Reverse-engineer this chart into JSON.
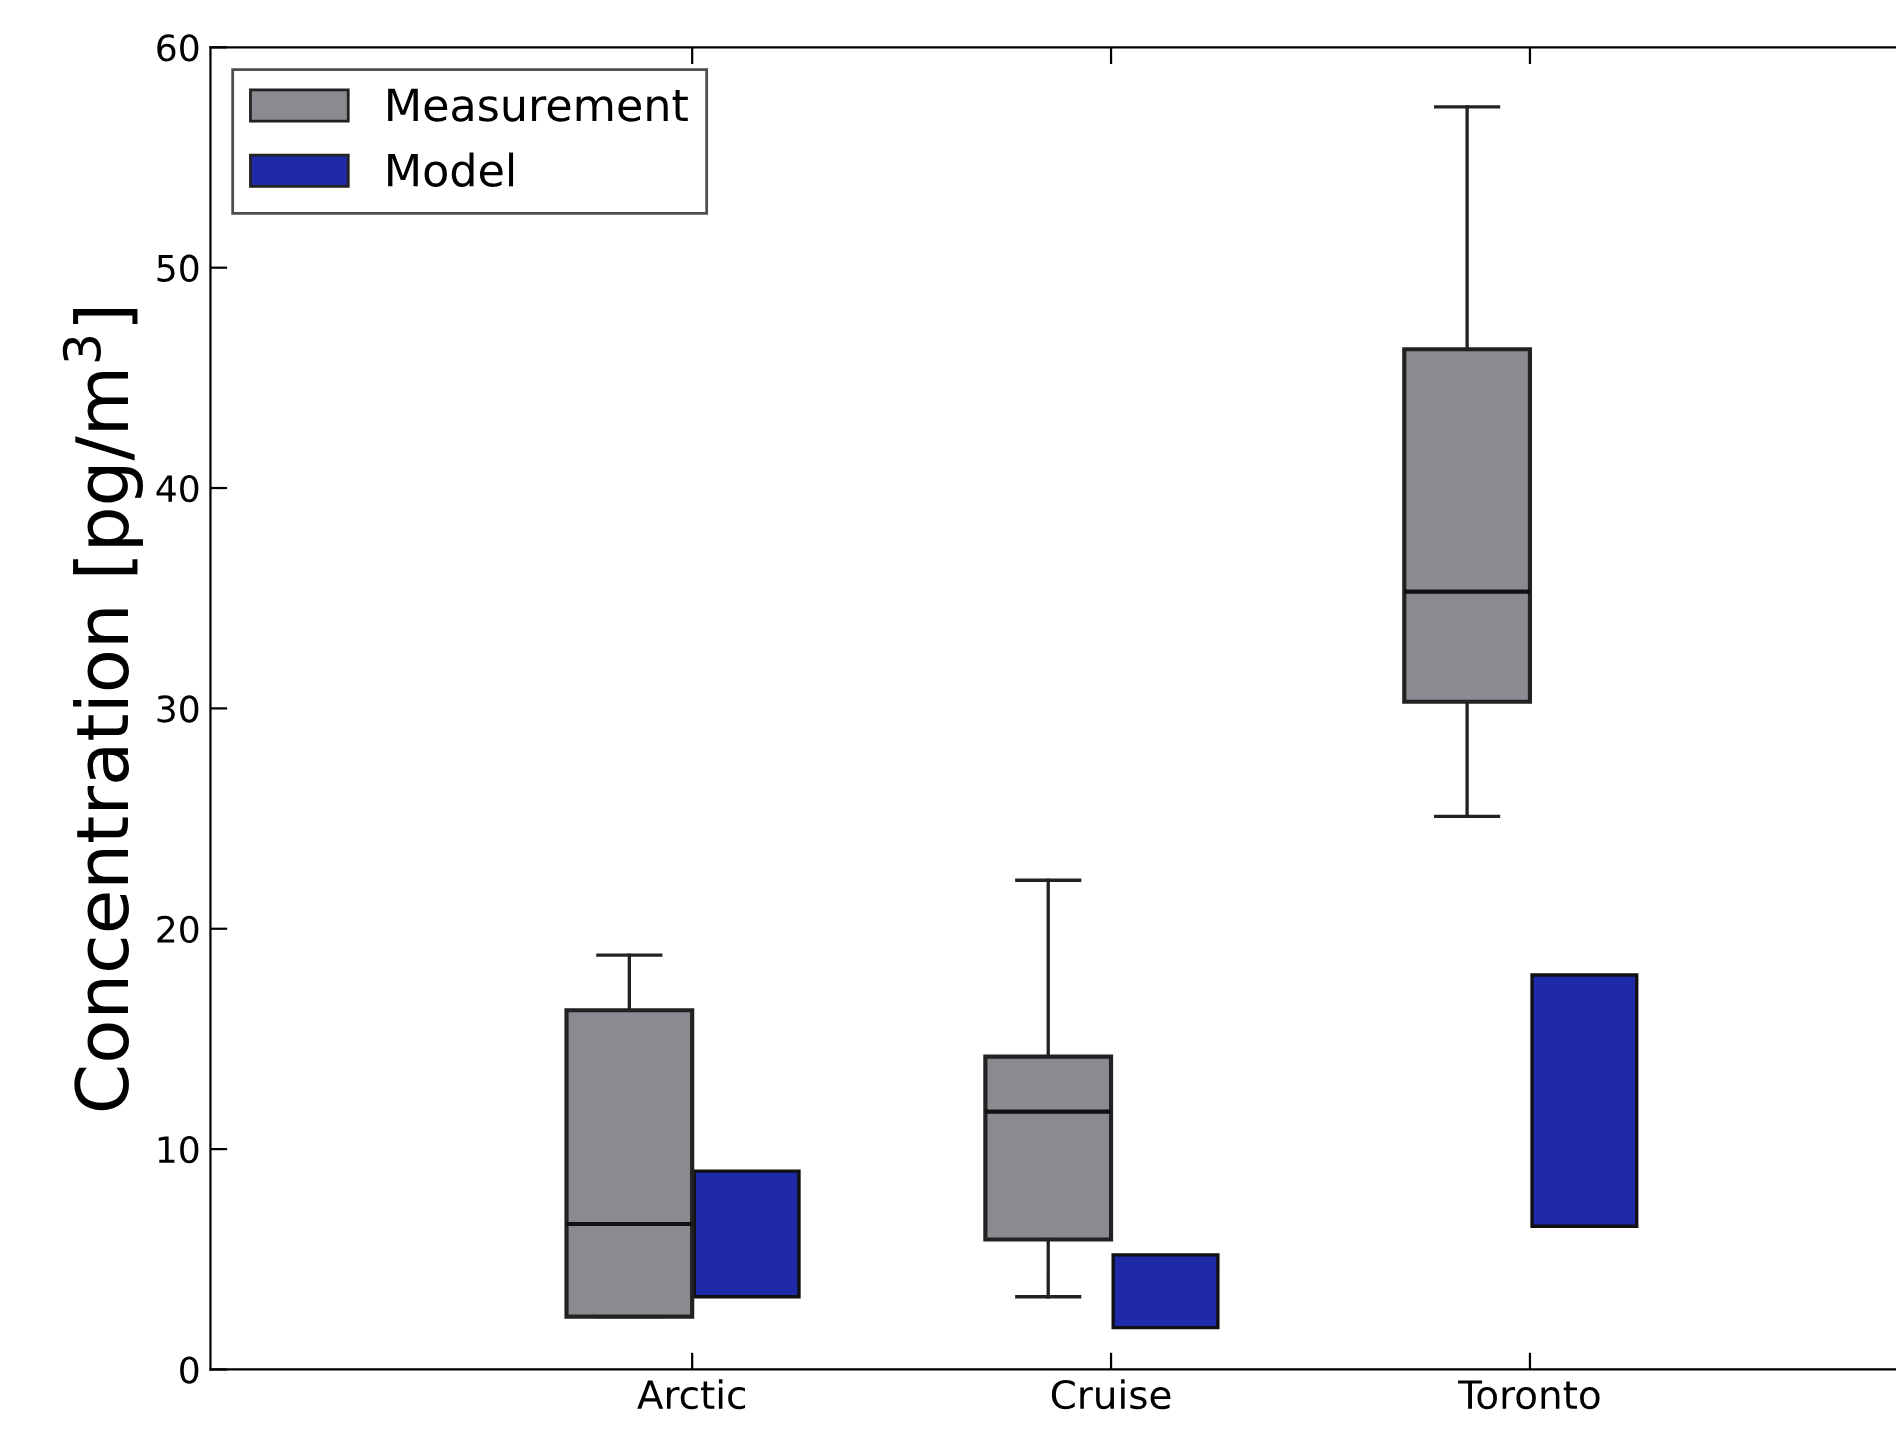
{
  "chart_data": {
    "type": "box",
    "ylabel": "Concentration [pg/m$^{3}$]",
    "categories": [
      "Arctic",
      "Cruise",
      "Toronto"
    ],
    "ylim": [
      0,
      60
    ],
    "yticks": [
      0,
      10,
      20,
      30,
      40,
      50,
      60
    ],
    "legend": "top left",
    "grid": false,
    "series": [
      {
        "name": "Measurement",
        "color": "#8c8a91",
        "boxes": [
          {
            "low": 2.4,
            "q1": 2.4,
            "median": 6.6,
            "q3": 16.3,
            "high": 18.8
          },
          {
            "low": 3.3,
            "q1": 5.9,
            "median": 11.7,
            "q3": 14.2,
            "high": 22.2
          },
          {
            "low": 25.1,
            "q1": 30.3,
            "median": 35.3,
            "q3": 46.3,
            "high": 57.3
          }
        ]
      },
      {
        "name": "Model",
        "type": "bar",
        "color": "#1f2aa8",
        "base": [
          3.3,
          1.9,
          6.5
        ],
        "values": [
          5.7,
          3.3,
          11.4
        ]
      }
    ]
  }
}
